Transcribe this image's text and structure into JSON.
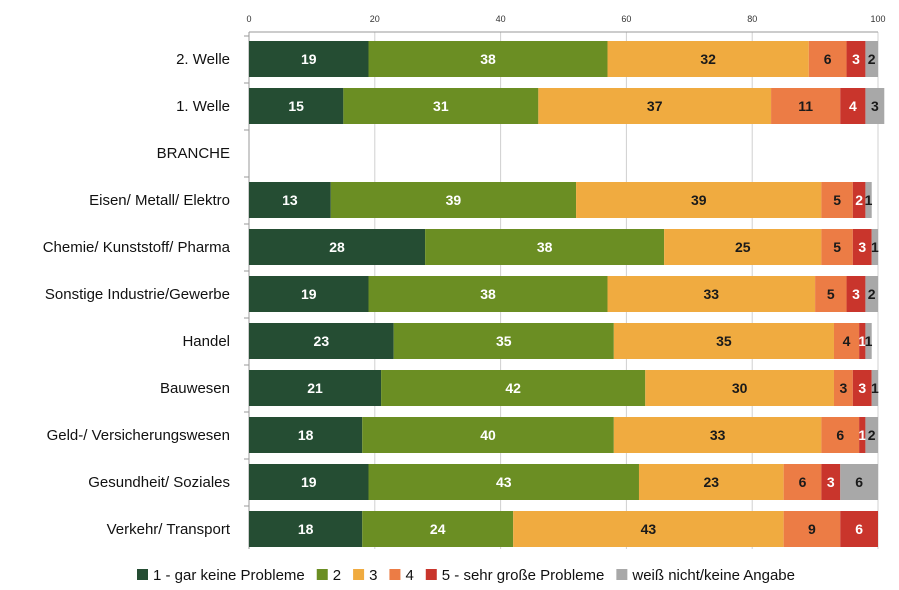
{
  "chart_data": {
    "type": "bar",
    "orientation": "horizontal",
    "stacked": true,
    "xlim": [
      0,
      100
    ],
    "x_ticks": [
      0,
      20,
      40,
      60,
      80,
      100
    ],
    "grid": "vertical",
    "legend_position": "bottom",
    "categories": [
      "2. Welle",
      "1. Welle",
      "BRANCHE",
      "Eisen/ Metall/ Elektro",
      "Chemie/ Kunststoff/ Pharma",
      "Sonstige Industrie/Gewerbe",
      "Handel",
      "Bauwesen",
      "Geld-/ Versicherungswesen",
      "Gesundheit/ Soziales",
      "Verkehr/ Transport"
    ],
    "series": [
      {
        "name": "1 - gar keine Probleme",
        "color": "#254d33",
        "label_color": "#ffffff",
        "values": [
          19,
          15,
          null,
          13,
          28,
          19,
          23,
          21,
          18,
          19,
          18
        ]
      },
      {
        "name": "2",
        "color": "#6b8e23",
        "label_color": "#ffffff",
        "values": [
          38,
          31,
          null,
          39,
          38,
          38,
          35,
          42,
          40,
          43,
          24
        ]
      },
      {
        "name": "3",
        "color": "#f0ab40",
        "label_color": "#1a1a1a",
        "values": [
          32,
          37,
          null,
          39,
          25,
          33,
          35,
          30,
          33,
          23,
          43
        ]
      },
      {
        "name": "4",
        "color": "#ec7c45",
        "label_color": "#1a1a1a",
        "values": [
          6,
          11,
          null,
          5,
          5,
          5,
          4,
          3,
          6,
          6,
          9
        ]
      },
      {
        "name": "5 - sehr große Probleme",
        "color": "#c9352c",
        "label_color": "#ffffff",
        "values": [
          3,
          4,
          null,
          2,
          3,
          3,
          1,
          3,
          1,
          3,
          6
        ]
      },
      {
        "name": "weiß nicht/keine Angabe",
        "color": "#a8a8a8",
        "label_color": "#1a1a1a",
        "values": [
          2,
          3,
          null,
          1,
          1,
          2,
          1,
          1,
          2,
          6,
          0
        ]
      }
    ]
  }
}
